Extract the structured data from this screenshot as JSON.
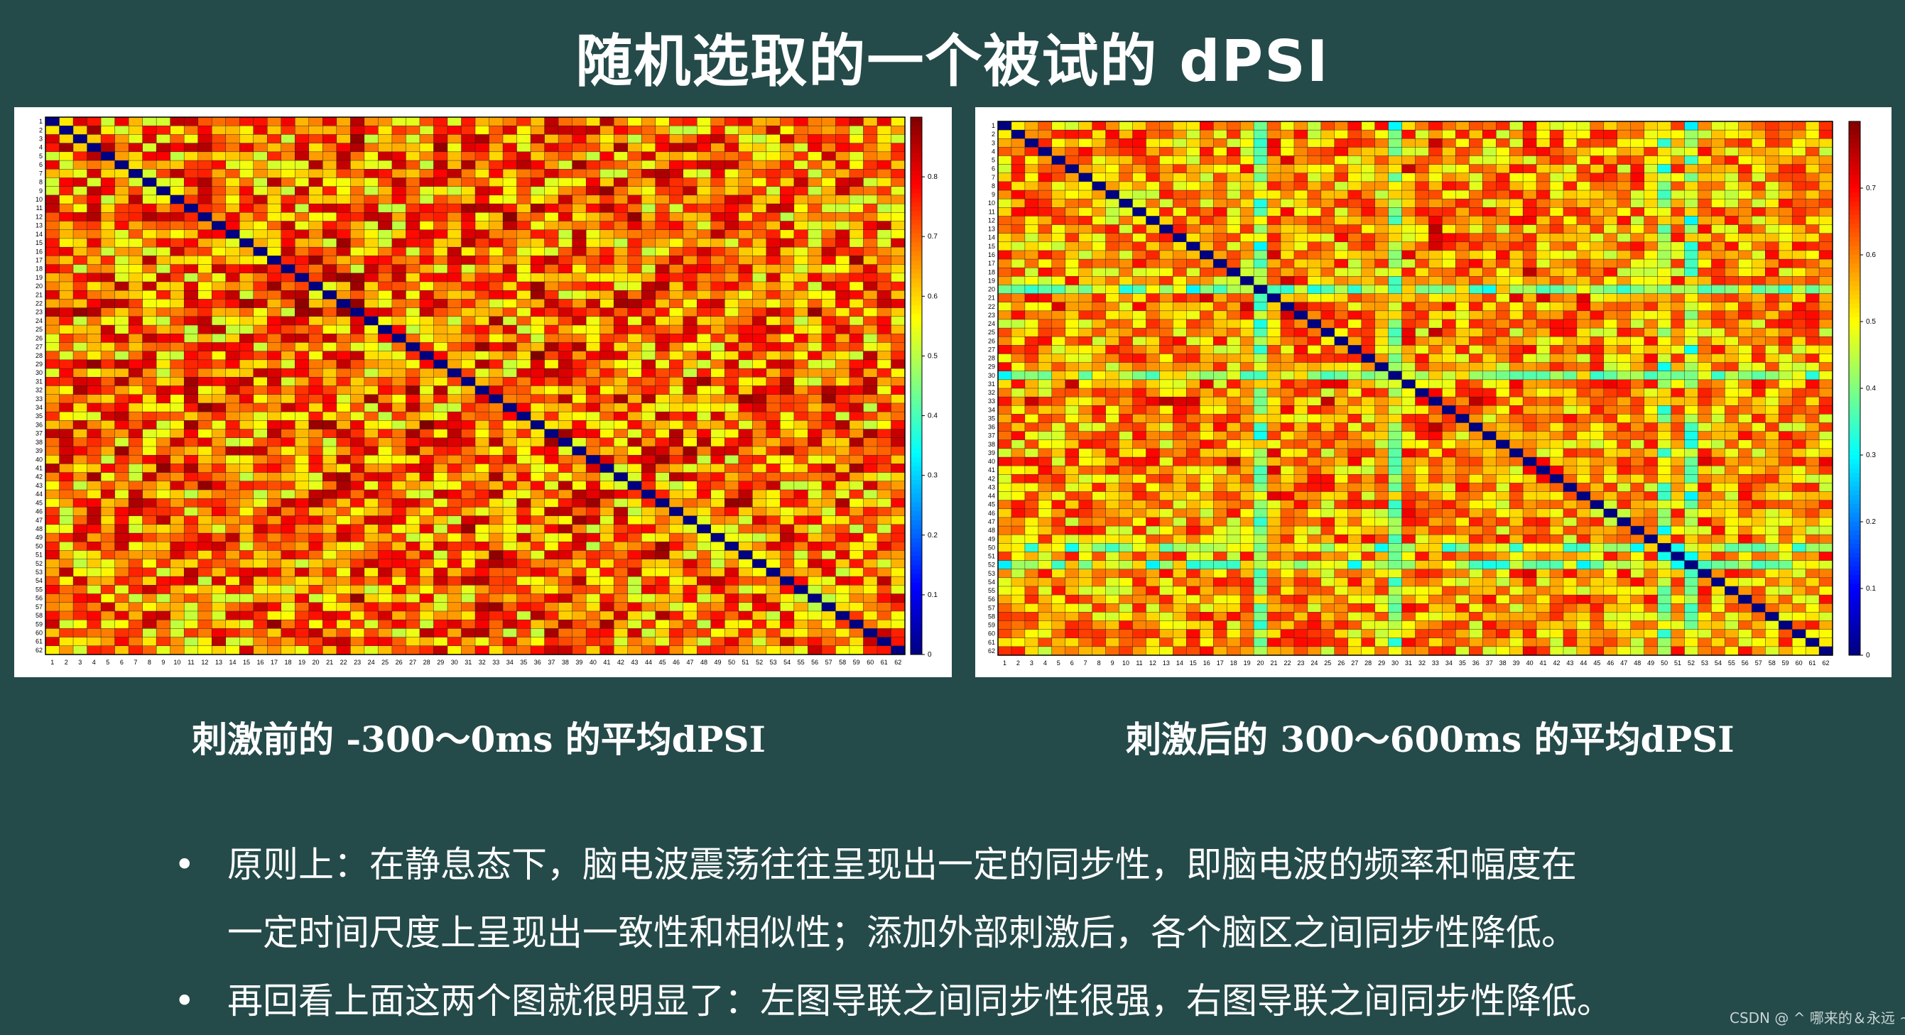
{
  "title": "随机选取的一个被试的 dPSI",
  "captions": {
    "left": "刺激前的 -300～0ms 的平均dPSI",
    "right": "刺激后的 300～600ms 的平均dPSI"
  },
  "bullets": [
    {
      "line1": "原则上：在静息态下，脑电波震荡往往呈现出一定的同步性，即脑电波的频率和幅度在",
      "line2": "一定时间尺度上呈现出一致性和相似性；添加外部刺激后，各个脑区之间同步性降低。"
    },
    {
      "line1": "再回看上面这两个图就很明显了：左图导联之间同步性很强，右图导联之间同步性降低。",
      "line2": ""
    }
  ],
  "bullet_glyph": "•",
  "watermark": "CSDN @ ^ 哪来的＆永远 ~",
  "colors": {
    "background": "#254a4a",
    "text": "#ffffff",
    "colormap": "jet",
    "diagonal": "#00008f"
  },
  "chart_data": [
    {
      "type": "heatmap",
      "channels": 62,
      "x_ticks": [
        "1",
        "2",
        "3",
        "4",
        "5",
        "6",
        "7",
        "8",
        "9",
        "10",
        "11",
        "12",
        "13",
        "14",
        "15",
        "16",
        "17",
        "18",
        "19",
        "20",
        "21",
        "22",
        "23",
        "24",
        "25",
        "26",
        "27",
        "28",
        "29",
        "30",
        "31",
        "32",
        "33",
        "34",
        "35",
        "36",
        "37",
        "38",
        "39",
        "40",
        "41",
        "42",
        "43",
        "44",
        "45",
        "46",
        "47",
        "48",
        "49",
        "50",
        "51",
        "52",
        "53",
        "54",
        "55",
        "56",
        "57",
        "58",
        "59",
        "60",
        "61",
        "62"
      ],
      "y_ticks": [
        "1",
        "2",
        "3",
        "4",
        "5",
        "6",
        "7",
        "8",
        "9",
        "10",
        "11",
        "12",
        "13",
        "14",
        "15",
        "16",
        "17",
        "18",
        "19",
        "20",
        "21",
        "22",
        "23",
        "24",
        "25",
        "26",
        "27",
        "28",
        "29",
        "30",
        "31",
        "32",
        "33",
        "34",
        "35",
        "36",
        "37",
        "38",
        "39",
        "40",
        "41",
        "42",
        "43",
        "44",
        "45",
        "46",
        "47",
        "48",
        "49",
        "50",
        "51",
        "52",
        "53",
        "54",
        "55",
        "56",
        "57",
        "58",
        "59",
        "60",
        "61",
        "62"
      ],
      "colorbar_ticks": [
        "0",
        "0.1",
        "0.2",
        "0.3",
        "0.4",
        "0.5",
        "0.6",
        "0.7",
        "0.8"
      ],
      "clim": [
        0,
        0.9
      ],
      "diagonal_value": 0,
      "typical_range": [
        0.5,
        0.85
      ],
      "seed": 7,
      "weak_channels": [],
      "strong_channels": [
        4,
        12,
        17,
        20,
        21,
        22,
        23,
        31,
        32,
        33,
        36,
        37,
        38,
        39,
        41,
        45
      ]
    },
    {
      "type": "heatmap",
      "channels": 62,
      "x_ticks": [
        "1",
        "2",
        "3",
        "4",
        "5",
        "6",
        "7",
        "8",
        "9",
        "10",
        "11",
        "12",
        "13",
        "14",
        "15",
        "16",
        "17",
        "18",
        "19",
        "20",
        "21",
        "22",
        "23",
        "24",
        "25",
        "26",
        "27",
        "28",
        "29",
        "30",
        "31",
        "32",
        "33",
        "34",
        "35",
        "36",
        "37",
        "38",
        "39",
        "40",
        "41",
        "42",
        "43",
        "44",
        "45",
        "46",
        "47",
        "48",
        "49",
        "50",
        "51",
        "52",
        "53",
        "54",
        "55",
        "56",
        "57",
        "58",
        "59",
        "60",
        "61",
        "62"
      ],
      "y_ticks": [
        "1",
        "2",
        "3",
        "4",
        "5",
        "6",
        "7",
        "8",
        "9",
        "10",
        "11",
        "12",
        "13",
        "14",
        "15",
        "16",
        "17",
        "18",
        "19",
        "20",
        "21",
        "22",
        "23",
        "24",
        "25",
        "26",
        "27",
        "28",
        "29",
        "30",
        "31",
        "32",
        "33",
        "34",
        "35",
        "36",
        "37",
        "38",
        "39",
        "40",
        "41",
        "42",
        "43",
        "44",
        "45",
        "46",
        "47",
        "48",
        "49",
        "50",
        "51",
        "52",
        "53",
        "54",
        "55",
        "56",
        "57",
        "58",
        "59",
        "60",
        "61",
        "62"
      ],
      "colorbar_ticks": [
        "0",
        "0.1",
        "0.2",
        "0.3",
        "0.4",
        "0.5",
        "0.6",
        "0.7"
      ],
      "clim": [
        0,
        0.8
      ],
      "diagonal_value": 0,
      "typical_range": [
        0.45,
        0.7
      ],
      "seed": 13,
      "weak_channels": [
        20,
        30,
        50,
        52
      ],
      "strong_channels": [
        21,
        22,
        31,
        33,
        40
      ]
    }
  ]
}
